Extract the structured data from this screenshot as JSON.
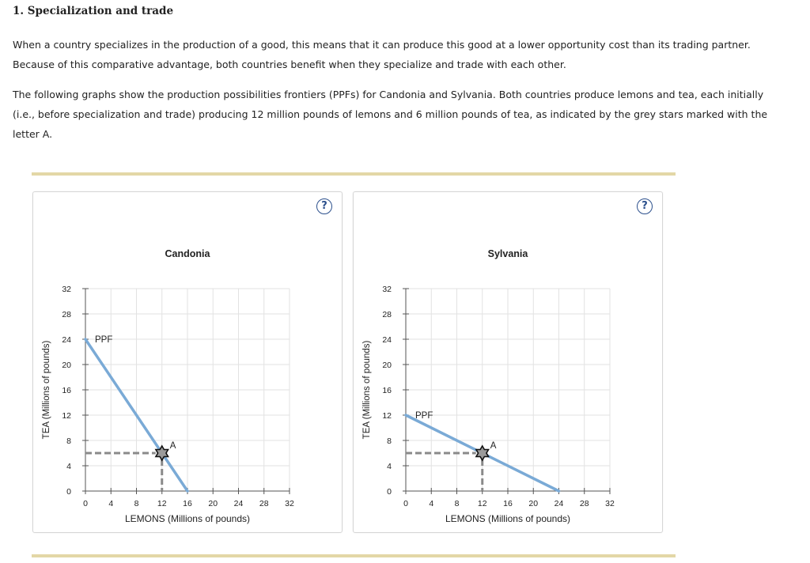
{
  "heading": "1. Specialization and trade",
  "paragraph1": "When a country specializes in the production of a good, this means that it can produce this good at a lower opportunity cost than its trading partner. Because of this comparative advantage, both countries benefit when they specialize and trade with each other.",
  "paragraph2": "The following graphs show the production possibilities frontiers (PPFs) for Candonia and Sylvania. Both countries produce lemons and tea, each initially (i.e., before specialization and trade) producing 12 million pounds of lemons and 6 million pounds of tea, as indicated by the grey stars marked with the letter A.",
  "help_glyph": "?",
  "colors": {
    "ppf": "#7aaad6",
    "dashed": "#8a8a8a",
    "grid": "#e2e2e2",
    "rule": "#e3d7a6"
  },
  "chart_data": [
    {
      "type": "line",
      "title": "Candonia",
      "xlabel": "LEMONS (Millions of pounds)",
      "ylabel": "TEA (Millions of pounds)",
      "xlim": [
        0,
        32
      ],
      "ylim": [
        0,
        32
      ],
      "x_ticks": [
        0,
        4,
        8,
        12,
        16,
        20,
        24,
        28,
        32
      ],
      "y_ticks": [
        0,
        4,
        8,
        12,
        16,
        20,
        24,
        28,
        32
      ],
      "grid": true,
      "series": [
        {
          "name": "PPF",
          "x": [
            0,
            16
          ],
          "y": [
            24,
            0
          ]
        }
      ],
      "points": [
        {
          "label": "A",
          "x": 12,
          "y": 6
        }
      ]
    },
    {
      "type": "line",
      "title": "Sylvania",
      "xlabel": "LEMONS (Millions of pounds)",
      "ylabel": "TEA (Millions of pounds)",
      "xlim": [
        0,
        32
      ],
      "ylim": [
        0,
        32
      ],
      "x_ticks": [
        0,
        4,
        8,
        12,
        16,
        20,
        24,
        28,
        32
      ],
      "y_ticks": [
        0,
        4,
        8,
        12,
        16,
        20,
        24,
        28,
        32
      ],
      "grid": true,
      "series": [
        {
          "name": "PPF",
          "x": [
            0,
            24
          ],
          "y": [
            12,
            0
          ]
        }
      ],
      "points": [
        {
          "label": "A",
          "x": 12,
          "y": 6
        }
      ]
    }
  ]
}
